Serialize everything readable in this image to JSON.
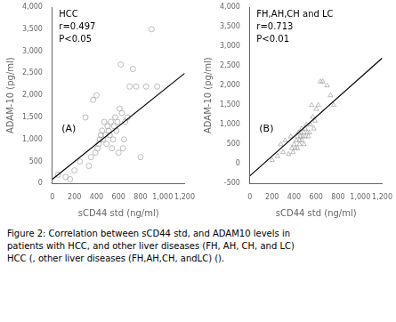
{
  "chart_data": [
    {
      "type": "scatter",
      "x_label": "sCD44 std (ng/ml)",
      "y_label": "ADAM-10 (pg/ml)",
      "annotations": [
        "HCC",
        "r=0.497",
        "P<0.05",
        "(A)"
      ],
      "series": [
        {
          "type": "scatter",
          "marker": "circle",
          "color": "#aaaaaa",
          "x": [
            50,
            120,
            160,
            200,
            250,
            300,
            330,
            350,
            370,
            390,
            400,
            410,
            420,
            430,
            440,
            450,
            460,
            470,
            480,
            490,
            500,
            510,
            520,
            530,
            540,
            550,
            560,
            570,
            580,
            590,
            600,
            610,
            620,
            630,
            640,
            650,
            660,
            680,
            700,
            730,
            760,
            800,
            850,
            900,
            950
          ],
          "values": [
            200,
            150,
            100,
            300,
            500,
            1500,
            400,
            600,
            1900,
            700,
            2000,
            800,
            900,
            1000,
            1100,
            1200,
            1000,
            1400,
            1100,
            900,
            1300,
            1200,
            1100,
            1400,
            800,
            1000,
            1300,
            1500,
            1200,
            1400,
            700,
            1700,
            2700,
            1600,
            800,
            1000,
            1400,
            1500,
            2200,
            2600,
            2200,
            600,
            2200,
            3500,
            2200
          ]
        },
        {
          "type": "line",
          "color": "#000000",
          "x": [
            0,
            1200
          ],
          "values": [
            100,
            2500
          ]
        }
      ],
      "xlim": [
        0,
        1200
      ],
      "ylim": [
        0,
        4000
      ],
      "xticks": [
        0,
        200,
        400,
        600,
        800,
        {
          "value": 1000,
          "label": "1,000"
        },
        {
          "value": 1200,
          "label": "1,200"
        }
      ],
      "yticks": [
        0,
        500,
        {
          "value": 1000,
          "label": "1,000"
        },
        {
          "value": 1500,
          "label": "1,500"
        },
        {
          "value": 2000,
          "label": "2,000"
        },
        {
          "value": 2500,
          "label": "2,500"
        },
        {
          "value": 3000,
          "label": "3,000"
        },
        {
          "value": 3500,
          "label": "3,500"
        },
        {
          "value": 4000,
          "label": "4,000"
        }
      ],
      "grid": false
    },
    {
      "type": "scatter",
      "x_label": "sCD44 std (ng/ml)",
      "y_label": "ADAM-10 (pg/ml)",
      "annotations": [
        "FH,AH,CH and LC",
        "r=0.713",
        "P<0.01",
        "(B)"
      ],
      "series": [
        {
          "type": "scatter",
          "marker": "triangle",
          "color": "#aaaaaa",
          "x": [
            200,
            250,
            280,
            300,
            320,
            350,
            370,
            380,
            390,
            400,
            410,
            420,
            430,
            430,
            440,
            450,
            450,
            460,
            460,
            470,
            470,
            480,
            490,
            490,
            500,
            500,
            510,
            520,
            530,
            540,
            550,
            560,
            570,
            580,
            590,
            600,
            620,
            640,
            660,
            700,
            730,
            760
          ],
          "values": [
            100,
            200,
            500,
            300,
            600,
            250,
            700,
            400,
            300,
            500,
            400,
            600,
            700,
            400,
            800,
            600,
            500,
            700,
            800,
            600,
            900,
            700,
            800,
            500,
            700,
            900,
            1000,
            800,
            700,
            800,
            1000,
            1500,
            1200,
            900,
            1100,
            1400,
            1500,
            2100,
            2100,
            2000,
            1750,
            1500
          ]
        },
        {
          "type": "line",
          "color": "#000000",
          "x": [
            0,
            1200
          ],
          "values": [
            -300,
            2700
          ]
        }
      ],
      "xlim": [
        0,
        1200
      ],
      "ylim": [
        -500,
        4000
      ],
      "xticks": [
        0,
        200,
        400,
        600,
        800,
        {
          "value": 1000,
          "label": "1,000"
        },
        {
          "value": 1200,
          "label": "1,200"
        }
      ],
      "yticks": [
        -500,
        0,
        500,
        {
          "value": 1000,
          "label": "1,000"
        },
        {
          "value": 1500,
          "label": "1,500"
        },
        {
          "value": 2000,
          "label": "2,000"
        },
        {
          "value": 2500,
          "label": "2,500"
        },
        {
          "value": 3000,
          "label": "3,000"
        },
        {
          "value": 3500,
          "label": "3,500"
        },
        {
          "value": 4000,
          "label": "4,000"
        }
      ],
      "grid": false
    }
  ],
  "caption": "Figure 2: Correlation between sCD44 std, and ADAM10 levels in\npatients with HCC, and other liver diseases (FH, AH, CH, and LC)\nHCC (, other liver diseases (FH,AH,CH, andLC) ()."
}
